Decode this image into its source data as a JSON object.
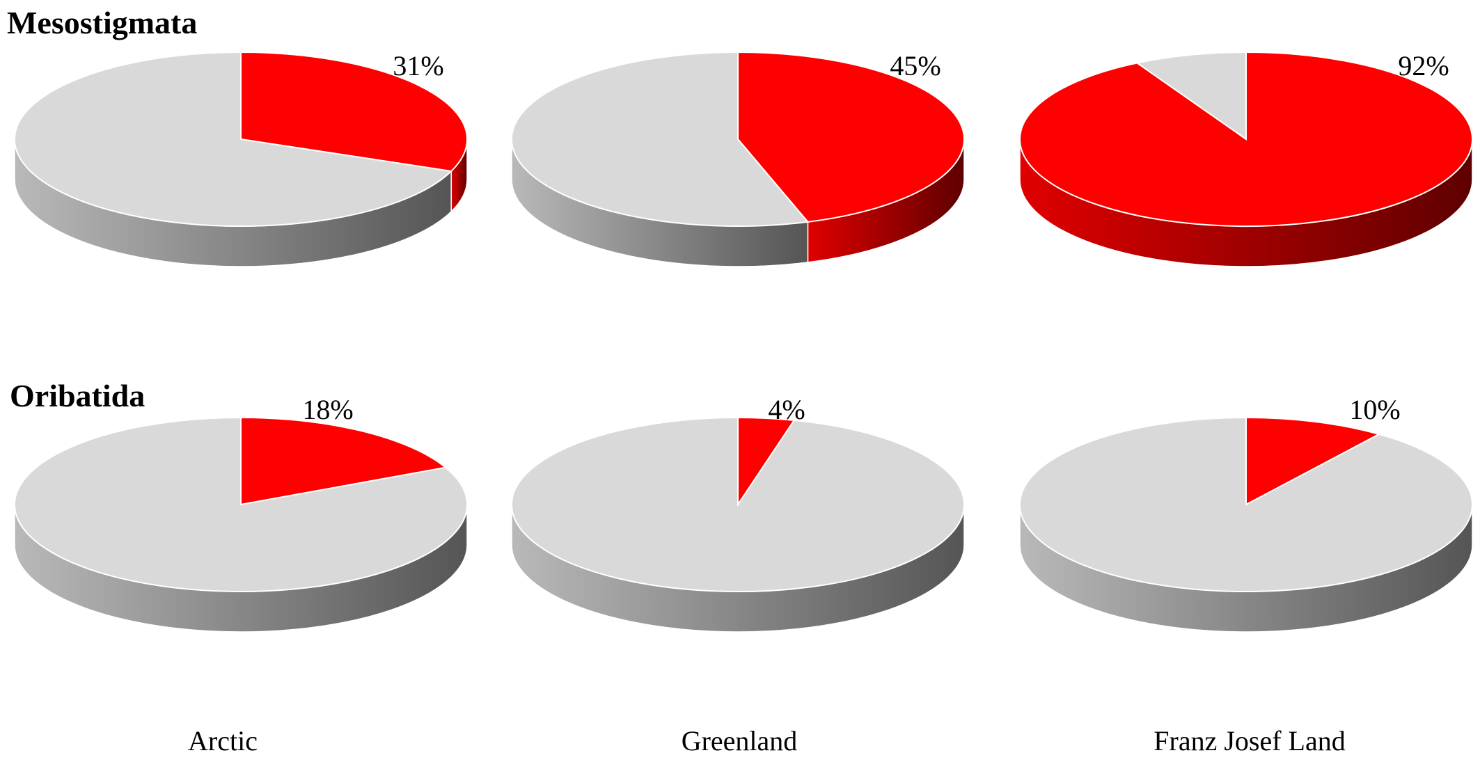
{
  "chart_data": [
    {
      "type": "pie",
      "title": "Mesostigmata",
      "categories": [
        "Arctic",
        "Greenland",
        "Franz Josef Land"
      ],
      "values": [
        31,
        45,
        92
      ],
      "labels": [
        "31%",
        "45%",
        "92%"
      ]
    },
    {
      "type": "pie",
      "title": "Oribatida",
      "categories": [
        "Arctic",
        "Greenland",
        "Franz Josef Land"
      ],
      "values": [
        18,
        4,
        10
      ],
      "labels": [
        "18%",
        "4%",
        "10%"
      ]
    }
  ],
  "colors": {
    "highlight": "#fe0000",
    "highlight_dark": "#5e0000",
    "rest": "#d9d9d9",
    "rest_side_light": "#b9b9b9",
    "rest_side_dark": "#555555"
  }
}
